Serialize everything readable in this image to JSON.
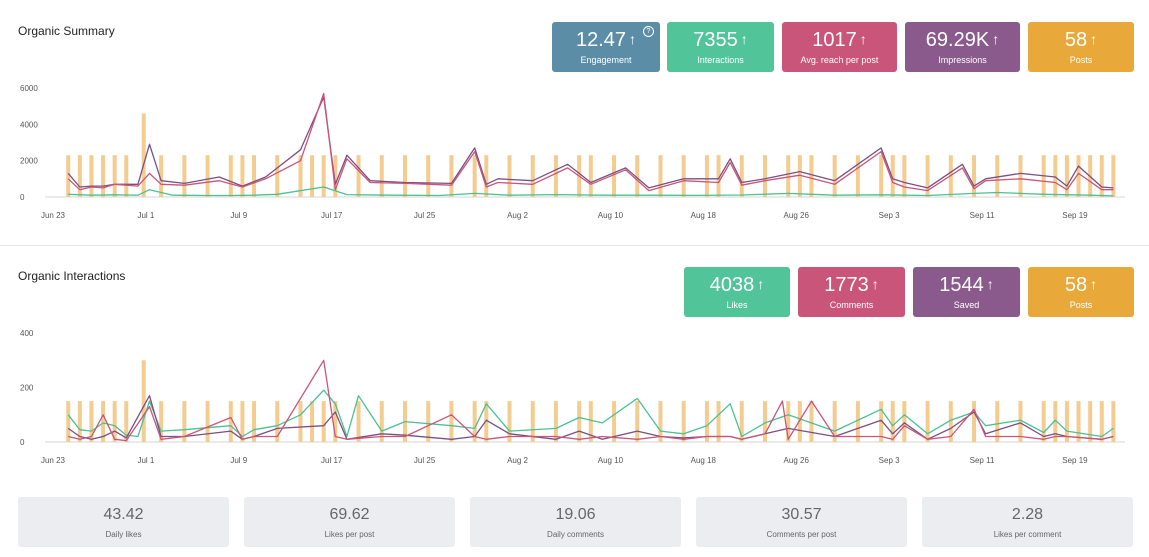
{
  "summary": {
    "title": "Organic Summary",
    "help_icon": "question-circle-icon",
    "kpis": [
      {
        "value": "12.47",
        "label": "Engagement",
        "color": "#5b8ea6",
        "arrow": "↑"
      },
      {
        "value": "7355",
        "label": "Interactions",
        "color": "#52c49a",
        "arrow": "↑"
      },
      {
        "value": "1017",
        "label": "Avg. reach per post",
        "color": "#c9567a",
        "arrow": "↑"
      },
      {
        "value": "69.29K",
        "label": "Impressions",
        "color": "#8a5a8c",
        "arrow": "↑"
      },
      {
        "value": "58",
        "label": "Posts",
        "color": "#e9a93a",
        "arrow": "↑"
      }
    ]
  },
  "interactions": {
    "title": "Organic Interactions",
    "kpis": [
      {
        "value": "4038",
        "label": "Likes",
        "color": "#52c49a",
        "arrow": "↑"
      },
      {
        "value": "1773",
        "label": "Comments",
        "color": "#c9567a",
        "arrow": "↑"
      },
      {
        "value": "1544",
        "label": "Saved",
        "color": "#8a5a8c",
        "arrow": "↑"
      },
      {
        "value": "58",
        "label": "Posts",
        "color": "#e9a93a",
        "arrow": "↑"
      }
    ]
  },
  "stats": [
    {
      "value": "43.42",
      "label": "Daily likes"
    },
    {
      "value": "69.62",
      "label": "Likes per post"
    },
    {
      "value": "19.06",
      "label": "Daily comments"
    },
    {
      "value": "30.57",
      "label": "Comments per post"
    },
    {
      "value": "2.28",
      "label": "Likes per comment"
    }
  ],
  "chart_data": [
    {
      "type": "bar",
      "title": "Organic Summary",
      "xlabel": "",
      "ylabel": "",
      "ylim": [
        0,
        6000
      ],
      "yticks": [
        "0",
        "2000",
        "4000",
        "6000"
      ],
      "x_start_day": 0,
      "x_end_day": 93,
      "xticks": [
        {
          "day": 0,
          "label": "Jun 23"
        },
        {
          "day": 8,
          "label": "Jul 1"
        },
        {
          "day": 16,
          "label": "Jul 9"
        },
        {
          "day": 24,
          "label": "Jul 17"
        },
        {
          "day": 32,
          "label": "Jul 25"
        },
        {
          "day": 40,
          "label": "Aug 2"
        },
        {
          "day": 48,
          "label": "Aug 10"
        },
        {
          "day": 56,
          "label": "Aug 18"
        },
        {
          "day": 64,
          "label": "Aug 26"
        },
        {
          "day": 72,
          "label": "Sep 3"
        },
        {
          "day": 80,
          "label": "Sep 11"
        },
        {
          "day": 88,
          "label": "Sep 19"
        }
      ],
      "bars": {
        "name": "Posts",
        "color": "#f5cc8f",
        "days": [
          2,
          3,
          4,
          5,
          6,
          7,
          8.5,
          10,
          12,
          14,
          16,
          17,
          18,
          20,
          22,
          23,
          24,
          25,
          27,
          29,
          31,
          33,
          35,
          37,
          38,
          40,
          42,
          44,
          46,
          47,
          49,
          51,
          53,
          55,
          57,
          58,
          60,
          62,
          64,
          65,
          66,
          68,
          70,
          72,
          73,
          74,
          76,
          78,
          80,
          82,
          84,
          86,
          87,
          88,
          89,
          90,
          91,
          92
        ],
        "values": [
          2300,
          2300,
          2300,
          2300,
          2300,
          2300,
          4600,
          2300,
          2300,
          2300,
          2300,
          2300,
          2300,
          2300,
          2300,
          2300,
          2300,
          2300,
          2300,
          2300,
          2300,
          2300,
          2300,
          2300,
          2300,
          2300,
          2300,
          2300,
          2300,
          2300,
          2300,
          2300,
          2300,
          2300,
          2300,
          2300,
          2300,
          2300,
          2300,
          2300,
          2300,
          2300,
          2300,
          2300,
          2300,
          2300,
          2300,
          2300,
          2300,
          2300,
          2300,
          2300,
          2300,
          2300,
          2300,
          2300,
          2300,
          2300
        ]
      },
      "series": [
        {
          "name": "Impressions",
          "color": "#7a4f82",
          "days": [
            2,
            3,
            4,
            5,
            6,
            8,
            9,
            10,
            12,
            15,
            17,
            19,
            22,
            24,
            25,
            26,
            28,
            31,
            35,
            37,
            38,
            39,
            42,
            45,
            47,
            50,
            52,
            55,
            58,
            59,
            60,
            62,
            65,
            68,
            72,
            73,
            74,
            76,
            79,
            80,
            81,
            84,
            87,
            88,
            89,
            91,
            92
          ],
          "values": [
            1300,
            550,
            600,
            600,
            700,
            700,
            2900,
            900,
            750,
            1100,
            600,
            1100,
            2600,
            5500,
            700,
            2300,
            900,
            800,
            750,
            2700,
            700,
            1000,
            900,
            1800,
            800,
            1600,
            500,
            1000,
            1000,
            2100,
            800,
            1000,
            1400,
            900,
            2700,
            1000,
            800,
            500,
            1800,
            600,
            1000,
            1300,
            1100,
            600,
            1700,
            550,
            500
          ]
        },
        {
          "name": "Avg. reach per post",
          "color": "#c9567a",
          "days": [
            2,
            3,
            4,
            5,
            6,
            8,
            9,
            10,
            12,
            15,
            17,
            19,
            22,
            24,
            25,
            26,
            28,
            31,
            35,
            37,
            38,
            39,
            42,
            45,
            47,
            50,
            52,
            55,
            58,
            59,
            60,
            62,
            65,
            68,
            72,
            73,
            74,
            76,
            79,
            80,
            81,
            84,
            87,
            88,
            89,
            91,
            92
          ],
          "values": [
            1000,
            400,
            550,
            500,
            700,
            600,
            1300,
            700,
            650,
            900,
            550,
            1000,
            2000,
            5700,
            400,
            2100,
            800,
            750,
            650,
            2500,
            550,
            800,
            700,
            1600,
            700,
            1500,
            350,
            900,
            800,
            1900,
            650,
            900,
            1200,
            700,
            2500,
            800,
            550,
            350,
            1600,
            450,
            900,
            1000,
            800,
            400,
            1300,
            400,
            400
          ]
        },
        {
          "name": "Interactions",
          "color": "#4cc093",
          "days": [
            2,
            4,
            6,
            8,
            9,
            11,
            14,
            16,
            18,
            20,
            24,
            26,
            30,
            34,
            37,
            40,
            44,
            48,
            52,
            56,
            60,
            64,
            68,
            72,
            76,
            80,
            82,
            86,
            90,
            92
          ],
          "values": [
            150,
            100,
            120,
            100,
            400,
            100,
            80,
            80,
            100,
            150,
            550,
            130,
            100,
            80,
            200,
            100,
            130,
            100,
            100,
            90,
            110,
            200,
            100,
            120,
            80,
            200,
            250,
            150,
            100,
            60
          ]
        }
      ]
    },
    {
      "type": "bar",
      "title": "Organic Interactions",
      "xlabel": "",
      "ylabel": "",
      "ylim": [
        0,
        400
      ],
      "yticks": [
        "0",
        "200",
        "400"
      ],
      "x_start_day": 0,
      "x_end_day": 93,
      "xticks": [
        {
          "day": 0,
          "label": "Jun 23"
        },
        {
          "day": 8,
          "label": "Jul 1"
        },
        {
          "day": 16,
          "label": "Jul 9"
        },
        {
          "day": 24,
          "label": "Jul 17"
        },
        {
          "day": 32,
          "label": "Jul 25"
        },
        {
          "day": 40,
          "label": "Aug 2"
        },
        {
          "day": 48,
          "label": "Aug 10"
        },
        {
          "day": 56,
          "label": "Aug 18"
        },
        {
          "day": 64,
          "label": "Aug 26"
        },
        {
          "day": 72,
          "label": "Sep 3"
        },
        {
          "day": 80,
          "label": "Sep 11"
        },
        {
          "day": 88,
          "label": "Sep 19"
        }
      ],
      "bars": {
        "name": "Posts",
        "color": "#f5cc8f",
        "days": [
          2,
          3,
          4,
          5,
          6,
          7,
          8.5,
          10,
          12,
          14,
          16,
          17,
          18,
          20,
          22,
          23,
          24,
          25,
          27,
          29,
          31,
          33,
          35,
          37,
          38,
          40,
          42,
          44,
          46,
          47,
          49,
          51,
          53,
          55,
          57,
          58,
          60,
          62,
          64,
          65,
          66,
          68,
          70,
          72,
          73,
          74,
          76,
          78,
          80,
          82,
          84,
          86,
          87,
          88,
          89,
          90,
          91,
          92
        ],
        "values": [
          150,
          150,
          150,
          150,
          150,
          150,
          300,
          150,
          150,
          150,
          150,
          150,
          150,
          150,
          150,
          150,
          150,
          150,
          150,
          150,
          150,
          150,
          150,
          150,
          150,
          150,
          150,
          150,
          150,
          150,
          150,
          150,
          150,
          150,
          150,
          150,
          150,
          150,
          150,
          150,
          150,
          150,
          150,
          150,
          150,
          150,
          150,
          150,
          150,
          150,
          150,
          150,
          150,
          150,
          150,
          150,
          150,
          150
        ]
      },
      "series": [
        {
          "name": "Likes",
          "color": "#4cc093",
          "days": [
            2,
            3,
            4,
            5,
            6,
            7,
            8,
            9,
            10,
            12,
            16,
            17,
            18,
            20,
            22,
            24,
            25,
            26,
            27,
            29,
            31,
            35,
            37,
            38,
            40,
            44,
            46,
            47,
            48,
            51,
            53,
            55,
            57,
            59,
            60,
            62,
            64,
            68,
            72,
            73,
            74,
            76,
            78,
            80,
            81,
            84,
            86,
            87,
            88,
            91,
            92
          ],
          "values": [
            100,
            45,
            40,
            70,
            60,
            25,
            20,
            150,
            40,
            45,
            60,
            20,
            45,
            60,
            100,
            190,
            140,
            20,
            170,
            40,
            75,
            60,
            50,
            140,
            40,
            50,
            90,
            80,
            70,
            160,
            40,
            30,
            60,
            140,
            20,
            70,
            100,
            40,
            120,
            60,
            100,
            30,
            80,
            110,
            60,
            80,
            35,
            80,
            40,
            20,
            50
          ]
        },
        {
          "name": "Saved",
          "color": "#7a4f82",
          "days": [
            2,
            3,
            4,
            5,
            6,
            7,
            9,
            10,
            12,
            16,
            17,
            18,
            20,
            24,
            25,
            26,
            29,
            31,
            35,
            37,
            38,
            40,
            44,
            46,
            48,
            51,
            53,
            55,
            57,
            59,
            60,
            62,
            64,
            68,
            72,
            73,
            74,
            76,
            78,
            80,
            81,
            84,
            86,
            87,
            88,
            91,
            92
          ],
          "values": [
            50,
            20,
            10,
            20,
            40,
            15,
            170,
            20,
            20,
            40,
            10,
            20,
            50,
            60,
            110,
            10,
            30,
            25,
            10,
            20,
            80,
            30,
            10,
            40,
            10,
            40,
            20,
            15,
            20,
            20,
            10,
            30,
            50,
            20,
            80,
            30,
            70,
            10,
            50,
            110,
            30,
            70,
            20,
            30,
            20,
            10,
            20
          ]
        },
        {
          "name": "Comments",
          "color": "#c9567a",
          "days": [
            2,
            3,
            4,
            5,
            6,
            7,
            9,
            10,
            12,
            16,
            17,
            18,
            20,
            24,
            25,
            26,
            29,
            31,
            35,
            37,
            38,
            40,
            44,
            46,
            48,
            51,
            53,
            55,
            57,
            59,
            60,
            62,
            63.5,
            64,
            66,
            68,
            72,
            73,
            74,
            76,
            78,
            80,
            81,
            84,
            86,
            87,
            88,
            91,
            92
          ],
          "values": [
            20,
            10,
            20,
            100,
            10,
            5,
            130,
            10,
            20,
            90,
            10,
            20,
            20,
            300,
            20,
            10,
            20,
            20,
            100,
            20,
            10,
            20,
            20,
            10,
            20,
            10,
            20,
            10,
            20,
            20,
            10,
            30,
            150,
            10,
            150,
            20,
            20,
            10,
            60,
            10,
            20,
            120,
            20,
            20,
            10,
            20,
            20,
            10,
            20
          ]
        }
      ]
    }
  ]
}
